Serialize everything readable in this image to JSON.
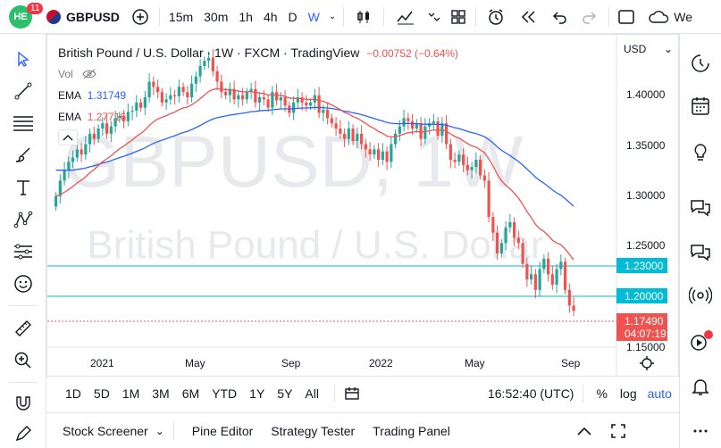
{
  "topbar": {
    "badge": "11",
    "symbol": "GBPUSD",
    "intervals": [
      "15m",
      "30m",
      "1h",
      "4h",
      "D",
      "W"
    ],
    "active_interval": "W",
    "publish_label": "We"
  },
  "legend": {
    "title": "British Pound / U.S. Dollar · 1W · FXCM · TradingView",
    "change": "−0.00752 (−0.64%)",
    "vol_label": "Vol",
    "ema1_label": "EMA",
    "ema1_value": "1.31749",
    "ema2_label": "EMA",
    "ema2_value": "1.27716"
  },
  "watermark": {
    "symbol": "GBPUSD, 1W",
    "name": "British Pound / U.S. Dollar"
  },
  "price_axis": {
    "currency": "USD",
    "ticks": [
      "1.40000",
      "1.35000",
      "1.30000",
      "1.25000",
      "1.15000"
    ],
    "hline1": "1.23000",
    "hline2": "1.20000",
    "last_price": "1.17490",
    "countdown": "04:07:19"
  },
  "time_axis": {
    "labels": [
      "2021",
      "May",
      "Sep",
      "2022",
      "May",
      "Sep"
    ]
  },
  "bottombar": {
    "ranges": [
      "1D",
      "5D",
      "1M",
      "3M",
      "6M",
      "YTD",
      "1Y",
      "5Y",
      "All"
    ],
    "clock": "16:52:40 (UTC)",
    "percent": "%",
    "log": "log",
    "auto": "auto"
  },
  "panels": {
    "tabs": [
      "Stock Screener",
      "Pine Editor",
      "Strategy Tester",
      "Trading Panel"
    ]
  },
  "chart_data": {
    "type": "candlestick",
    "title": "British Pound / U.S. Dollar · 1W · FXCM · TradingView",
    "ylim": [
      1.14,
      1.44
    ],
    "colors": {
      "up": "#26a69a",
      "down": "#ef5350",
      "ema_fast": "#ef5350",
      "ema_slow": "#2962ff",
      "hline": "#00bcd4"
    },
    "closes": [
      1.285,
      1.3,
      1.31,
      1.318,
      1.322,
      1.33,
      1.325,
      1.335,
      1.345,
      1.34,
      1.35,
      1.355,
      1.345,
      1.352,
      1.36,
      1.362,
      1.357,
      1.366,
      1.367,
      1.375,
      1.37,
      1.38,
      1.395,
      1.39,
      1.385,
      1.375,
      1.378,
      1.382,
      1.381,
      1.39,
      1.385,
      1.38,
      1.393,
      1.4,
      1.41,
      1.415,
      1.418,
      1.405,
      1.395,
      1.385,
      1.382,
      1.388,
      1.378,
      1.382,
      1.378,
      1.385,
      1.388,
      1.375,
      1.38,
      1.378,
      1.37,
      1.385,
      1.377,
      1.38,
      1.372,
      1.365,
      1.375,
      1.38,
      1.375,
      1.372,
      1.375,
      1.382,
      1.365,
      1.368,
      1.36,
      1.355,
      1.35,
      1.345,
      1.34,
      1.35,
      1.338,
      1.345,
      1.335,
      1.33,
      1.325,
      1.33,
      1.32,
      1.328,
      1.318,
      1.335,
      1.345,
      1.352,
      1.36,
      1.357,
      1.35,
      1.355,
      1.34,
      1.352,
      1.355,
      1.357,
      1.343,
      1.355,
      1.335,
      1.32,
      1.318,
      1.325,
      1.315,
      1.31,
      1.313,
      1.32,
      1.305,
      1.3,
      1.265,
      1.25,
      1.23,
      1.24,
      1.255,
      1.26,
      1.245,
      1.24,
      1.22,
      1.205,
      1.21,
      1.195,
      1.215,
      1.225,
      1.21,
      1.2,
      1.215,
      1.222,
      1.195,
      1.18,
      1.1749
    ]
  }
}
